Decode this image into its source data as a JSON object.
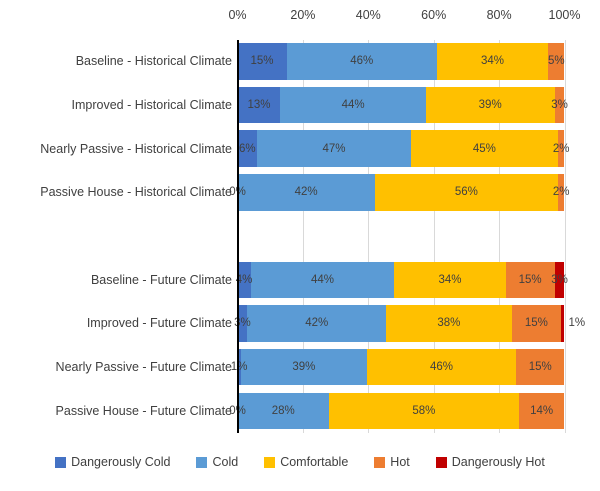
{
  "chart_data": {
    "type": "bar",
    "subtype": "horizontal-stacked-100-percent",
    "title": "",
    "x_axis": {
      "position": "top",
      "min": 0,
      "max": 100,
      "tick_values": [
        0,
        20,
        40,
        60,
        80,
        100
      ],
      "ticks": [
        "0%",
        "20%",
        "40%",
        "60%",
        "80%",
        "100%"
      ]
    },
    "grid": true,
    "legend_position": "bottom",
    "series": [
      {
        "name": "Dangerously Cold",
        "color": "#4472C4"
      },
      {
        "name": "Cold",
        "color": "#5B9BD5"
      },
      {
        "name": "Comfortable",
        "color": "#FFC000"
      },
      {
        "name": "Hot",
        "color": "#ED7D31"
      },
      {
        "name": "Dangerously Hot",
        "color": "#C00000"
      }
    ],
    "sections": [
      {
        "name": "Historical Climate",
        "rows": [
          {
            "label": "Baseline - Historical Climate",
            "values": [
              15,
              46,
              34,
              5,
              0
            ],
            "value_labels": [
              "15%",
              "46%",
              "34%",
              "5%",
              null
            ]
          },
          {
            "label": "Improved - Historical Climate",
            "values": [
              13,
              44,
              39,
              3,
              0
            ],
            "value_labels": [
              "13%",
              "44%",
              "39%",
              "3%",
              null
            ]
          },
          {
            "label": "Nearly Passive - Historical Climate",
            "values": [
              6,
              47,
              45,
              2,
              0
            ],
            "value_labels": [
              "6%",
              "47%",
              "45%",
              "2%",
              null
            ]
          },
          {
            "label": "Passive House - Historical Climate",
            "values": [
              0,
              42,
              56,
              2,
              0
            ],
            "value_labels": [
              "0%",
              "42%",
              "56%",
              "2%",
              null
            ]
          }
        ]
      },
      {
        "name": "Future Climate",
        "rows": [
          {
            "label": "Baseline - Future Climate",
            "values": [
              4,
              44,
              34,
              15,
              3
            ],
            "value_labels": [
              "4%",
              "44%",
              "34%",
              "15%",
              "3%"
            ]
          },
          {
            "label": "Improved - Future Climate",
            "values": [
              3,
              42,
              38,
              15,
              1
            ],
            "value_labels": [
              "3%",
              "42%",
              "38%",
              "15%",
              "1%"
            ]
          },
          {
            "label": "Nearly Passive - Future Climate",
            "values": [
              1,
              39,
              46,
              15,
              0
            ],
            "value_labels": [
              "1%",
              "39%",
              "46%",
              "15%",
              null
            ]
          },
          {
            "label": "Passive House - Future Climate",
            "values": [
              0,
              28,
              58,
              14,
              0
            ],
            "value_labels": [
              "0%",
              "28%",
              "58%",
              "14%",
              null
            ]
          }
        ]
      }
    ],
    "colors": {
      "text": "#404040",
      "gridline": "#D9D9D9",
      "axis_line": "#000000",
      "background": "#FFFFFF"
    }
  }
}
